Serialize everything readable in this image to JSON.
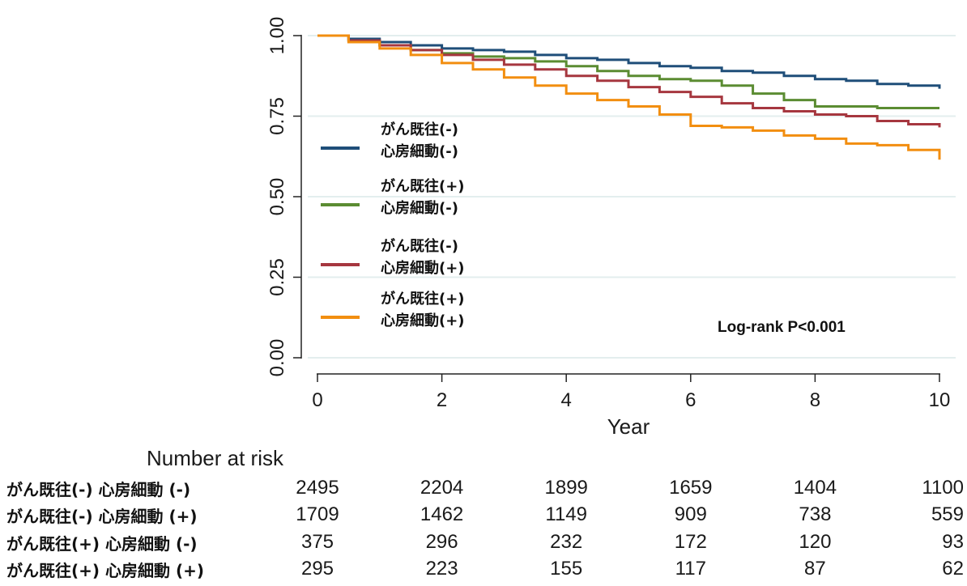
{
  "chart_data": {
    "type": "line",
    "step": true,
    "xlabel": "Year",
    "ylabel": "",
    "xlim": [
      0,
      10
    ],
    "ylim": [
      0,
      1
    ],
    "xticks": [
      "0",
      "2",
      "4",
      "6",
      "8",
      "10"
    ],
    "yticks": [
      "0.00",
      "0.25",
      "0.50",
      "0.75",
      "1.00"
    ],
    "grid": true,
    "legend_position": "left",
    "annotation": "Log-rank P<0.001",
    "colors": [
      "#1f4e79",
      "#5b8c32",
      "#a6373f",
      "#f28e10"
    ],
    "series": [
      {
        "name_line1": "がん既往(-)",
        "name_line2": "心房細動(-)",
        "x": [
          0,
          0.5,
          1,
          1.5,
          2,
          2.5,
          3,
          3.5,
          4,
          4.5,
          5,
          5.5,
          6,
          6.5,
          7,
          7.5,
          8,
          8.5,
          9,
          9.5,
          10
        ],
        "y": [
          1.0,
          0.99,
          0.98,
          0.97,
          0.96,
          0.955,
          0.95,
          0.94,
          0.93,
          0.925,
          0.915,
          0.905,
          0.9,
          0.89,
          0.885,
          0.875,
          0.865,
          0.86,
          0.85,
          0.845,
          0.835
        ]
      },
      {
        "name_line1": "がん既往(+)",
        "name_line2": "心房細動(-)",
        "x": [
          0,
          0.5,
          1,
          1.5,
          2,
          2.5,
          3,
          3.5,
          4,
          4.5,
          5,
          5.5,
          6,
          6.5,
          7,
          7.5,
          8,
          8.5,
          9,
          9.5,
          10
        ],
        "y": [
          1.0,
          0.985,
          0.97,
          0.955,
          0.945,
          0.935,
          0.93,
          0.92,
          0.905,
          0.89,
          0.875,
          0.865,
          0.86,
          0.845,
          0.82,
          0.8,
          0.78,
          0.78,
          0.775,
          0.775,
          0.775
        ]
      },
      {
        "name_line1": "がん既往(-)",
        "name_line2": "心房細動(+)",
        "x": [
          0,
          0.5,
          1,
          1.5,
          2,
          2.5,
          3,
          3.5,
          4,
          4.5,
          5,
          5.5,
          6,
          6.5,
          7,
          7.5,
          8,
          8.5,
          9,
          9.5,
          10
        ],
        "y": [
          1.0,
          0.985,
          0.97,
          0.955,
          0.94,
          0.925,
          0.91,
          0.895,
          0.875,
          0.86,
          0.84,
          0.825,
          0.81,
          0.79,
          0.775,
          0.765,
          0.755,
          0.75,
          0.735,
          0.725,
          0.715
        ]
      },
      {
        "name_line1": "がん既往(+)",
        "name_line2": "心房細動(+)",
        "x": [
          0,
          0.5,
          1,
          1.5,
          2,
          2.5,
          3,
          3.5,
          4,
          4.5,
          5,
          5.5,
          6,
          6.5,
          7,
          7.5,
          8,
          8.5,
          9,
          9.5,
          10
        ],
        "y": [
          1.0,
          0.98,
          0.96,
          0.94,
          0.915,
          0.895,
          0.87,
          0.845,
          0.82,
          0.8,
          0.78,
          0.755,
          0.72,
          0.715,
          0.705,
          0.69,
          0.68,
          0.665,
          0.66,
          0.645,
          0.615
        ]
      }
    ]
  },
  "risk_table": {
    "title": "Number at risk",
    "rows": [
      {
        "label": "がん既往(-) 心房細動 (-)",
        "values": [
          "2495",
          "2204",
          "1899",
          "1659",
          "1404",
          "1100"
        ]
      },
      {
        "label": "がん既往(-) 心房細動 (+)",
        "values": [
          "1709",
          "1462",
          "1149",
          "909",
          "738",
          "559"
        ]
      },
      {
        "label": "がん既往(+) 心房細動 (-)",
        "values": [
          "375",
          "296",
          "232",
          "172",
          "120",
          "93"
        ]
      },
      {
        "label": "がん既往(+) 心房細動 (+)",
        "values": [
          "295",
          "223",
          "155",
          "117",
          "87",
          "62"
        ]
      }
    ]
  }
}
